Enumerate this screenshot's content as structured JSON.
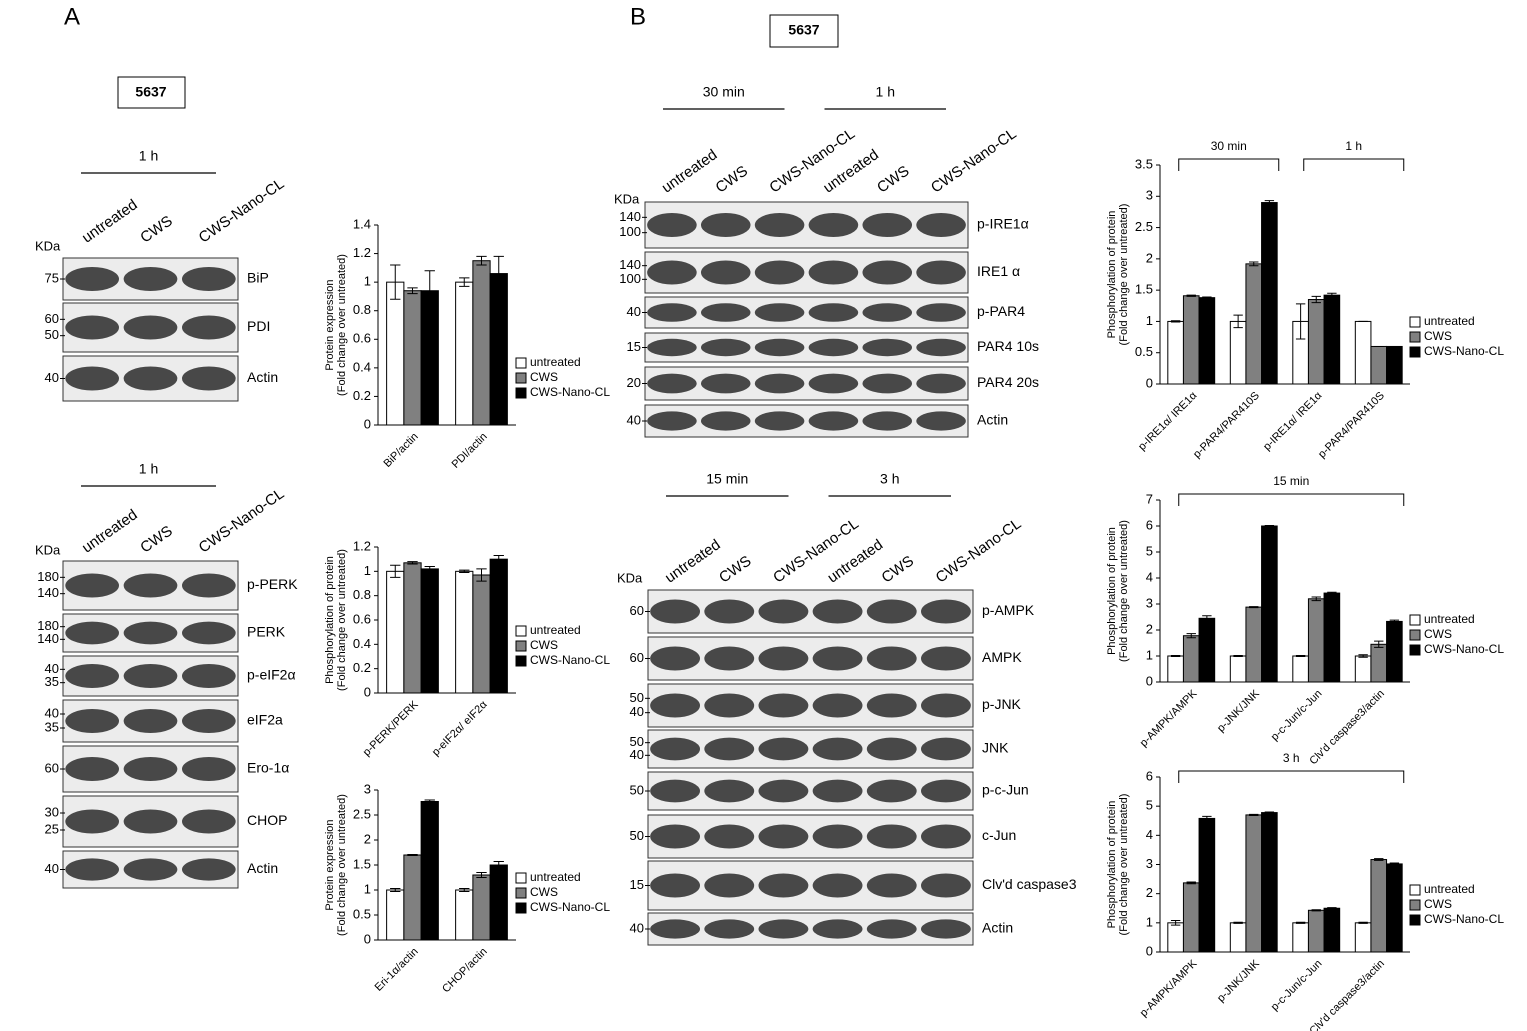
{
  "panels": [
    {
      "label": "A",
      "cell_line": "5637",
      "blots": [
        {
          "time_labels": [
            "1 h"
          ],
          "kda": "KDa",
          "lanes": [
            "untreated",
            "CWS",
            "CWS-Nano-CL"
          ],
          "rows": [
            {
              "name": "BiP",
              "markers": [
                "75"
              ]
            },
            {
              "name": "PDI",
              "markers": [
                "60",
                "50"
              ]
            },
            {
              "name": "Actin",
              "markers": [
                "40"
              ]
            }
          ]
        },
        {
          "time_labels": [
            "1 h"
          ],
          "kda": "KDa",
          "lanes": [
            "untreated",
            "CWS",
            "CWS-Nano-CL"
          ],
          "rows": [
            {
              "name": "p-PERK",
              "markers": [
                "180",
                "140"
              ]
            },
            {
              "name": "PERK",
              "markers": [
                "180",
                "140"
              ]
            },
            {
              "name": "p-eIF2α",
              "markers": [
                "40",
                "35"
              ]
            },
            {
              "name": "eIF2a",
              "markers": [
                "40",
                "35"
              ]
            },
            {
              "name": "Ero-1α",
              "markers": [
                "60"
              ]
            },
            {
              "name": "CHOP",
              "markers": [
                "30",
                "25"
              ]
            },
            {
              "name": "Actin",
              "markers": [
                "40"
              ]
            }
          ]
        }
      ]
    },
    {
      "label": "B",
      "cell_line": "5637",
      "blots": [
        {
          "time_labels": [
            "30 min",
            "1 h"
          ],
          "kda": "KDa",
          "lanes": [
            "untreated",
            "CWS",
            "CWS-Nano-CL",
            "untreated",
            "CWS",
            "CWS-Nano-CL"
          ],
          "rows": [
            {
              "name": "p-IRE1α",
              "markers": [
                "140",
                "100"
              ]
            },
            {
              "name": "IRE1 α",
              "markers": [
                "140",
                "100"
              ]
            },
            {
              "name": "p-PAR4",
              "markers": [
                "40"
              ]
            },
            {
              "name": "PAR4 10s",
              "markers": [
                "15"
              ]
            },
            {
              "name": "PAR4 20s",
              "markers": [
                "20"
              ]
            },
            {
              "name": "Actin",
              "markers": [
                "40"
              ]
            }
          ]
        },
        {
          "time_labels": [
            "15 min",
            "3 h"
          ],
          "kda": "KDa",
          "lanes": [
            "untreated",
            "CWS",
            "CWS-Nano-CL",
            "untreated",
            "CWS",
            "CWS-Nano-CL"
          ],
          "rows": [
            {
              "name": "p-AMPK",
              "markers": [
                "60"
              ]
            },
            {
              "name": "AMPK",
              "markers": [
                "60"
              ]
            },
            {
              "name": "p-JNK",
              "markers": [
                "50",
                "40"
              ]
            },
            {
              "name": "JNK",
              "markers": [
                "50",
                "40"
              ]
            },
            {
              "name": "p-c-Jun",
              "markers": [
                "50"
              ]
            },
            {
              "name": "c-Jun",
              "markers": [
                "50"
              ]
            },
            {
              "name": "Clv'd caspase3",
              "markers": [
                "15"
              ]
            },
            {
              "name": "Actin",
              "markers": [
                "40"
              ]
            }
          ]
        }
      ]
    }
  ],
  "chart_data": [
    {
      "type": "bar",
      "ylabel": [
        "Protein expression",
        "(Fold change over untreated)"
      ],
      "annotations": [],
      "categories": [
        "BiP/actin",
        "PDI/actin"
      ],
      "ylim": [
        0,
        1.4
      ],
      "yticks": [
        0,
        0.2,
        0.4,
        0.6,
        0.8,
        1,
        1.2,
        1.4
      ],
      "series": [
        {
          "name": "untreated",
          "color": "#ffffff",
          "values": [
            1,
            1
          ],
          "errors": [
            0.12,
            0.03
          ]
        },
        {
          "name": "CWS",
          "color": "#808080",
          "values": [
            0.94,
            1.15
          ],
          "errors": [
            0.02,
            0.03
          ]
        },
        {
          "name": "CWS-Nano-CL",
          "color": "#000000",
          "values": [
            0.94,
            1.06
          ],
          "errors": [
            0.14,
            0.12
          ]
        }
      ]
    },
    {
      "type": "bar",
      "ylabel": [
        "Phosphorylation of protein",
        "(Fold change over untreated)"
      ],
      "annotations": [],
      "categories": [
        "p-PERK/PERK",
        "p-eIF2α/ eIF2α"
      ],
      "ylim": [
        0,
        1.2
      ],
      "yticks": [
        0,
        0.2,
        0.4,
        0.6,
        0.8,
        1,
        1.2
      ],
      "series": [
        {
          "name": "untreated",
          "color": "#ffffff",
          "values": [
            1,
            1
          ],
          "errors": [
            0.05,
            0.01
          ]
        },
        {
          "name": "CWS",
          "color": "#808080",
          "values": [
            1.07,
            0.97
          ],
          "errors": [
            0.01,
            0.05
          ]
        },
        {
          "name": "CWS-Nano-CL",
          "color": "#000000",
          "values": [
            1.02,
            1.1
          ],
          "errors": [
            0.02,
            0.03
          ]
        }
      ]
    },
    {
      "type": "bar",
      "ylabel": [
        "Protein expression",
        "(Fold change over untreated)"
      ],
      "annotations": [],
      "categories": [
        "Eri-1α/actin",
        "CHOP/actin"
      ],
      "ylim": [
        0,
        3
      ],
      "yticks": [
        0,
        0.5,
        1,
        1.5,
        2,
        2.5,
        3
      ],
      "series": [
        {
          "name": "untreated",
          "color": "#ffffff",
          "values": [
            1,
            1
          ],
          "errors": [
            0.03,
            0.03
          ]
        },
        {
          "name": "CWS",
          "color": "#808080",
          "values": [
            1.7,
            1.3
          ],
          "errors": [
            0.01,
            0.05
          ]
        },
        {
          "name": "CWS-Nano-CL",
          "color": "#000000",
          "values": [
            2.77,
            1.5
          ],
          "errors": [
            0.03,
            0.07
          ]
        }
      ]
    },
    {
      "type": "bar",
      "ylabel": [
        "Phosphorylation of protein",
        "(Fold change over untreated)"
      ],
      "annotations": [
        "30 min",
        "1 h"
      ],
      "categories": [
        "p-IRE1α/ IRE1α",
        "p-PAR4/PAR410S",
        "p-IRE1α/ IRE1α",
        "p-PAR4/PAR410S"
      ],
      "ylim": [
        0,
        3.5
      ],
      "yticks": [
        0,
        0.5,
        1,
        1.5,
        2,
        2.5,
        3,
        3.5
      ],
      "series": [
        {
          "name": "untreated",
          "color": "#ffffff",
          "values": [
            1,
            1,
            1,
            1
          ],
          "errors": [
            0.01,
            0.1,
            0.28,
            0
          ]
        },
        {
          "name": "CWS",
          "color": "#808080",
          "values": [
            1.41,
            1.92,
            1.35,
            0.6
          ],
          "errors": [
            0.01,
            0.03,
            0.05,
            0
          ]
        },
        {
          "name": "CWS-Nano-CL",
          "color": "#000000",
          "values": [
            1.38,
            2.9,
            1.42,
            0.6
          ],
          "errors": [
            0.01,
            0.03,
            0.03,
            0
          ]
        }
      ]
    },
    {
      "type": "bar",
      "ylabel": [
        "Phosphorylation of protein",
        "(Fold change over untreated)"
      ],
      "annotations": [
        "15 min"
      ],
      "categories": [
        "p-AMPK/AMPK",
        "p-JNK/JNK",
        "p-c-Jun/c-Jun",
        "Clv'd caspase3/actin"
      ],
      "ylim": [
        0,
        7
      ],
      "yticks": [
        0,
        1,
        2,
        3,
        4,
        5,
        6,
        7
      ],
      "series": [
        {
          "name": "untreated",
          "color": "#ffffff",
          "values": [
            1,
            1,
            1,
            1
          ],
          "errors": [
            0.02,
            0.02,
            0.02,
            0.05
          ]
        },
        {
          "name": "CWS",
          "color": "#808080",
          "values": [
            1.78,
            2.88,
            3.2,
            1.45
          ],
          "errors": [
            0.08,
            0.02,
            0.07,
            0.12
          ]
        },
        {
          "name": "CWS-Nano-CL",
          "color": "#000000",
          "values": [
            2.45,
            6,
            3.42,
            2.33
          ],
          "errors": [
            0.1,
            0.02,
            0.03,
            0.05
          ]
        }
      ]
    },
    {
      "type": "bar",
      "ylabel": [
        "Phosphorylation of protein",
        "(Fold change over untreated)"
      ],
      "annotations": [
        "3 h"
      ],
      "categories": [
        "p-AMPK/AMPK",
        "p-JNK/JNK",
        "p-c-Jun/c-Jun",
        "Clv'd caspase3/actin"
      ],
      "ylim": [
        0,
        6
      ],
      "yticks": [
        0,
        1,
        2,
        3,
        4,
        5,
        6
      ],
      "series": [
        {
          "name": "untreated",
          "color": "#ffffff",
          "values": [
            1,
            1,
            1,
            1
          ],
          "errors": [
            0.08,
            0.02,
            0.02,
            0.02
          ]
        },
        {
          "name": "CWS",
          "color": "#808080",
          "values": [
            2.37,
            4.7,
            1.43,
            3.17
          ],
          "errors": [
            0.03,
            0.02,
            0.02,
            0.03
          ]
        },
        {
          "name": "CWS-Nano-CL",
          "color": "#000000",
          "values": [
            4.58,
            4.78,
            1.5,
            3.02
          ],
          "errors": [
            0.07,
            0.02,
            0.02,
            0.03
          ]
        }
      ]
    }
  ]
}
